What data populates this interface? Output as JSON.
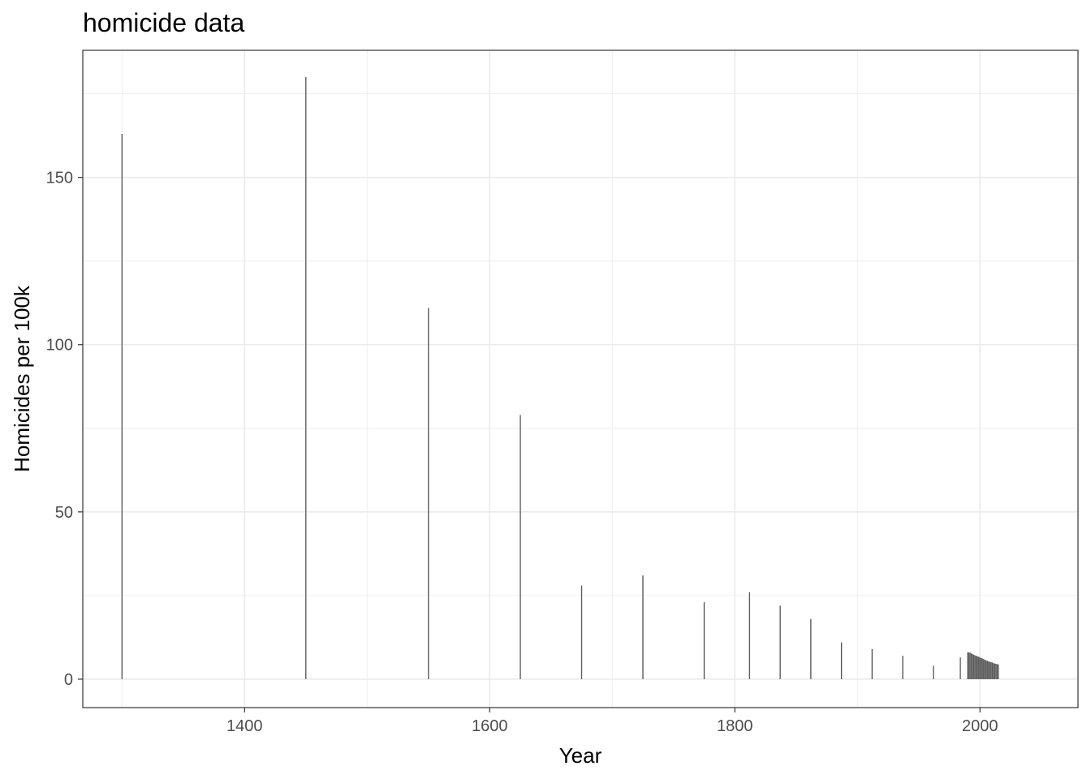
{
  "chart_data": {
    "type": "bar",
    "title": "homicide data",
    "xlabel": "Year",
    "ylabel": "Homicides per 100k",
    "xlim": [
      1268,
      2080
    ],
    "ylim": [
      -8.5,
      188
    ],
    "x_ticks": [
      1400,
      1600,
      1800,
      2000
    ],
    "y_ticks": [
      0,
      50,
      100,
      150
    ],
    "grid": true,
    "color": "#595959",
    "x": [
      1300,
      1450,
      1550,
      1625,
      1675,
      1725,
      1775,
      1812,
      1837,
      1862,
      1887,
      1912,
      1937,
      1962,
      1984,
      1990,
      1991,
      1992,
      1993,
      1994,
      1995,
      1996,
      1997,
      1998,
      1999,
      2000,
      2001,
      2002,
      2003,
      2004,
      2005,
      2006,
      2007,
      2008,
      2009,
      2010,
      2011,
      2012,
      2013,
      2014,
      2015
    ],
    "values": [
      163,
      180,
      111,
      79,
      28,
      31,
      23,
      26,
      22,
      18,
      11,
      9,
      7,
      4,
      6.5,
      8,
      8,
      7.9,
      7.7,
      7.5,
      7.3,
      7.1,
      7.0,
      6.8,
      6.7,
      6.5,
      6.3,
      6.2,
      6.0,
      5.8,
      5.6,
      5.5,
      5.3,
      5.2,
      5.1,
      5.0,
      4.8,
      4.7,
      4.6,
      4.5,
      4.4
    ]
  }
}
